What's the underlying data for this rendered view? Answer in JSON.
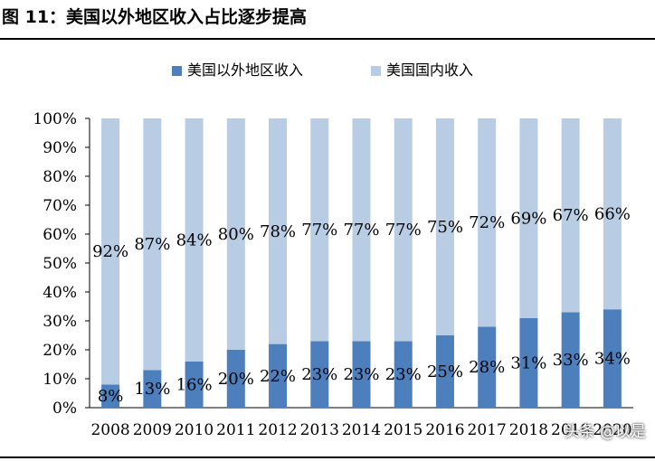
{
  "figure_title": "图 11：美国以外地区收入占比逐步提高",
  "watermark": "头条 @以是",
  "colors": {
    "foreign": "#4e7fbd",
    "domestic": "#b8cce4"
  },
  "chart_data": {
    "type": "bar",
    "stacked": true,
    "categories": [
      "2008",
      "2009",
      "2010",
      "2011",
      "2012",
      "2013",
      "2014",
      "2015",
      "2016",
      "2017",
      "2018",
      "2019",
      "2020"
    ],
    "series": [
      {
        "name": "美国以外地区收入",
        "values": [
          8,
          13,
          16,
          20,
          22,
          23,
          23,
          23,
          25,
          28,
          31,
          33,
          34
        ]
      },
      {
        "name": "美国国内收入",
        "values": [
          92,
          87,
          84,
          80,
          78,
          77,
          77,
          77,
          75,
          72,
          69,
          67,
          66
        ]
      }
    ],
    "data_labels": {
      "foreign": [
        "8%",
        "13%",
        "16%",
        "20%",
        "22%",
        "23%",
        "23%",
        "23%",
        "25%",
        "28%",
        "31%",
        "33%",
        "34%"
      ],
      "domestic": [
        "92%",
        "87%",
        "84%",
        "80%",
        "78%",
        "77%",
        "77%",
        "77%",
        "75%",
        "72%",
        "69%",
        "67%",
        "66%"
      ]
    },
    "y_ticks": [
      "0%",
      "10%",
      "20%",
      "30%",
      "40%",
      "50%",
      "60%",
      "70%",
      "80%",
      "90%",
      "100%"
    ],
    "ylim": [
      0,
      100
    ],
    "legend_position": "top",
    "grid": false
  }
}
